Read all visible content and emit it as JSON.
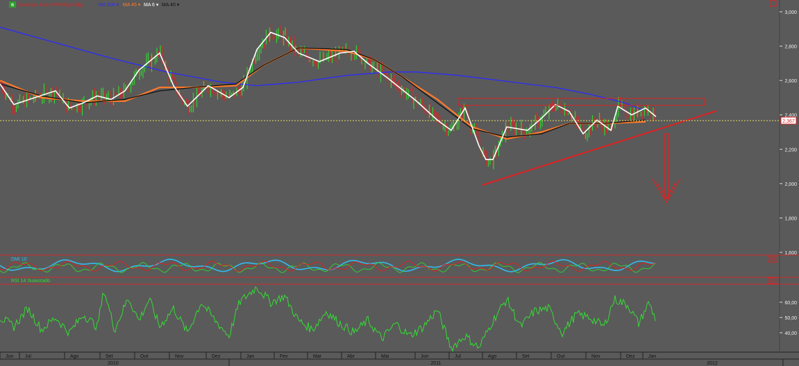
{
  "header": {
    "logo_text": "tt",
    "symbol_label": "Ibovespa Index (Weekly/Daily)",
    "indicators": [
      {
        "label": "MA 200",
        "color": "#2b2bff"
      },
      {
        "label": "MA 45",
        "color": "#ff7a2a"
      },
      {
        "label": "MA 6",
        "color": "#ffffff"
      },
      {
        "label": "MA 40",
        "color": "#111111"
      }
    ],
    "close_icon": "close-icon"
  },
  "colors": {
    "background": "#5a5a5a",
    "up_bar": "#33cc33",
    "down_bar": "#d12a2a",
    "ma200": "#2b2bff",
    "ma45": "#ff7a2a",
    "ma6": "#ffffff",
    "ma40": "#111111",
    "annotation": "#e02020",
    "current_price_line": "#e8e060",
    "rsi_line": "#33dd33",
    "dmi_plus": "#33cc33",
    "dmi_minus": "#e02020",
    "dmi_adx": "#33bbee"
  },
  "price_axis": {
    "ticks": [
      "3,000",
      "2,800",
      "2,600",
      "2,400",
      "2,200",
      "2,000",
      "1,800",
      "1,600"
    ],
    "current_price": "2,367"
  },
  "dmi_panel": {
    "label": "DMI 10",
    "badge": "DMI"
  },
  "rsi_panel": {
    "label": "RSI 14 Suavizado",
    "badge": "RSI",
    "ticks": [
      "60,00",
      "50,00",
      "40,00"
    ]
  },
  "time_axis": {
    "months": [
      "Jun",
      "Jul",
      "Ago",
      "Set",
      "Out",
      "Nov",
      "Dez",
      "Jan",
      "Fev",
      "Mar",
      "Abr",
      "Mai",
      "Jun",
      "Jul",
      "Ago",
      "Set",
      "Out",
      "Nov",
      "Dez",
      "Jan"
    ],
    "years": [
      "2010",
      "2011",
      "2012"
    ]
  },
  "chart_data": {
    "type": "candlestick",
    "x_range": [
      "2010-06",
      "2012-01"
    ],
    "ylim": [
      1550,
      3050
    ],
    "series": [
      {
        "name": "MA 200",
        "points": [
          [
            0,
            2910
          ],
          [
            80,
            2820
          ],
          [
            160,
            2730
          ],
          [
            240,
            2650
          ],
          [
            320,
            2590
          ],
          [
            370,
            2570
          ],
          [
            430,
            2590
          ],
          [
            500,
            2630
          ],
          [
            560,
            2650
          ],
          [
            600,
            2650
          ],
          [
            660,
            2630
          ],
          [
            740,
            2590
          ],
          [
            800,
            2560
          ],
          [
            850,
            2520
          ],
          [
            900,
            2470
          ],
          [
            925,
            2430
          ]
        ]
      },
      {
        "name": "MA 45",
        "points": [
          [
            0,
            2600
          ],
          [
            60,
            2500
          ],
          [
            120,
            2480
          ],
          [
            180,
            2480
          ],
          [
            230,
            2560
          ],
          [
            280,
            2560
          ],
          [
            340,
            2570
          ],
          [
            380,
            2690
          ],
          [
            430,
            2790
          ],
          [
            500,
            2770
          ],
          [
            540,
            2720
          ],
          [
            580,
            2620
          ],
          [
            630,
            2490
          ],
          [
            680,
            2330
          ],
          [
            730,
            2260
          ],
          [
            780,
            2300
          ],
          [
            820,
            2350
          ],
          [
            870,
            2350
          ],
          [
            930,
            2360
          ]
        ]
      },
      {
        "name": "MA 6",
        "points": [
          [
            0,
            2580
          ],
          [
            20,
            2460
          ],
          [
            50,
            2500
          ],
          [
            80,
            2540
          ],
          [
            100,
            2440
          ],
          [
            120,
            2470
          ],
          [
            140,
            2510
          ],
          [
            160,
            2490
          ],
          [
            180,
            2540
          ],
          [
            200,
            2660
          ],
          [
            230,
            2760
          ],
          [
            250,
            2570
          ],
          [
            270,
            2450
          ],
          [
            300,
            2570
          ],
          [
            330,
            2500
          ],
          [
            350,
            2560
          ],
          [
            370,
            2780
          ],
          [
            390,
            2880
          ],
          [
            410,
            2850
          ],
          [
            430,
            2760
          ],
          [
            460,
            2710
          ],
          [
            490,
            2760
          ],
          [
            510,
            2770
          ],
          [
            530,
            2700
          ],
          [
            560,
            2610
          ],
          [
            600,
            2480
          ],
          [
            630,
            2370
          ],
          [
            650,
            2310
          ],
          [
            670,
            2440
          ],
          [
            690,
            2220
          ],
          [
            700,
            2140
          ],
          [
            710,
            2140
          ],
          [
            730,
            2330
          ],
          [
            760,
            2310
          ],
          [
            780,
            2380
          ],
          [
            800,
            2460
          ],
          [
            820,
            2420
          ],
          [
            840,
            2290
          ],
          [
            860,
            2370
          ],
          [
            880,
            2310
          ],
          [
            890,
            2450
          ],
          [
            910,
            2400
          ],
          [
            930,
            2440
          ],
          [
            945,
            2390
          ]
        ]
      },
      {
        "name": "MA 40",
        "points": [
          [
            0,
            2580
          ],
          [
            60,
            2510
          ],
          [
            120,
            2470
          ],
          [
            180,
            2490
          ],
          [
            230,
            2540
          ],
          [
            280,
            2560
          ],
          [
            340,
            2580
          ],
          [
            380,
            2690
          ],
          [
            430,
            2790
          ],
          [
            500,
            2780
          ],
          [
            540,
            2720
          ],
          [
            580,
            2620
          ],
          [
            630,
            2470
          ],
          [
            680,
            2320
          ],
          [
            730,
            2270
          ],
          [
            780,
            2290
          ],
          [
            820,
            2350
          ],
          [
            870,
            2350
          ],
          [
            930,
            2370
          ]
        ]
      },
      {
        "name": "RSI 14 Suavizado",
        "points": [
          [
            0,
            50
          ],
          [
            20,
            44
          ],
          [
            40,
            56
          ],
          [
            60,
            42
          ],
          [
            80,
            50
          ],
          [
            100,
            40
          ],
          [
            120,
            52
          ],
          [
            140,
            44
          ],
          [
            150,
            68
          ],
          [
            165,
            42
          ],
          [
            185,
            63
          ],
          [
            200,
            48
          ],
          [
            215,
            62
          ],
          [
            230,
            44
          ],
          [
            250,
            56
          ],
          [
            270,
            40
          ],
          [
            290,
            60
          ],
          [
            310,
            48
          ],
          [
            330,
            38
          ],
          [
            345,
            60
          ],
          [
            370,
            70
          ],
          [
            390,
            60
          ],
          [
            410,
            64
          ],
          [
            430,
            48
          ],
          [
            450,
            42
          ],
          [
            470,
            54
          ],
          [
            490,
            46
          ],
          [
            510,
            40
          ],
          [
            530,
            48
          ],
          [
            550,
            36
          ],
          [
            570,
            46
          ],
          [
            590,
            38
          ],
          [
            610,
            44
          ],
          [
            630,
            55
          ],
          [
            650,
            30
          ],
          [
            670,
            38
          ],
          [
            690,
            30
          ],
          [
            710,
            48
          ],
          [
            730,
            62
          ],
          [
            750,
            44
          ],
          [
            770,
            54
          ],
          [
            790,
            56
          ],
          [
            810,
            40
          ],
          [
            830,
            52
          ],
          [
            850,
            50
          ],
          [
            870,
            44
          ],
          [
            885,
            62
          ],
          [
            905,
            58
          ],
          [
            920,
            46
          ],
          [
            935,
            60
          ],
          [
            945,
            48
          ]
        ]
      }
    ],
    "annotations": [
      {
        "type": "support-trendline",
        "from": [
          "2011-08",
          2000
        ],
        "to": [
          "2012-01",
          2400
        ]
      },
      {
        "type": "resistance-box",
        "range": [
          2460,
          2500
        ],
        "from": "2011-07",
        "to": "2012-01"
      },
      {
        "type": "target-arrow",
        "from": 2290,
        "to": 1900
      }
    ]
  }
}
